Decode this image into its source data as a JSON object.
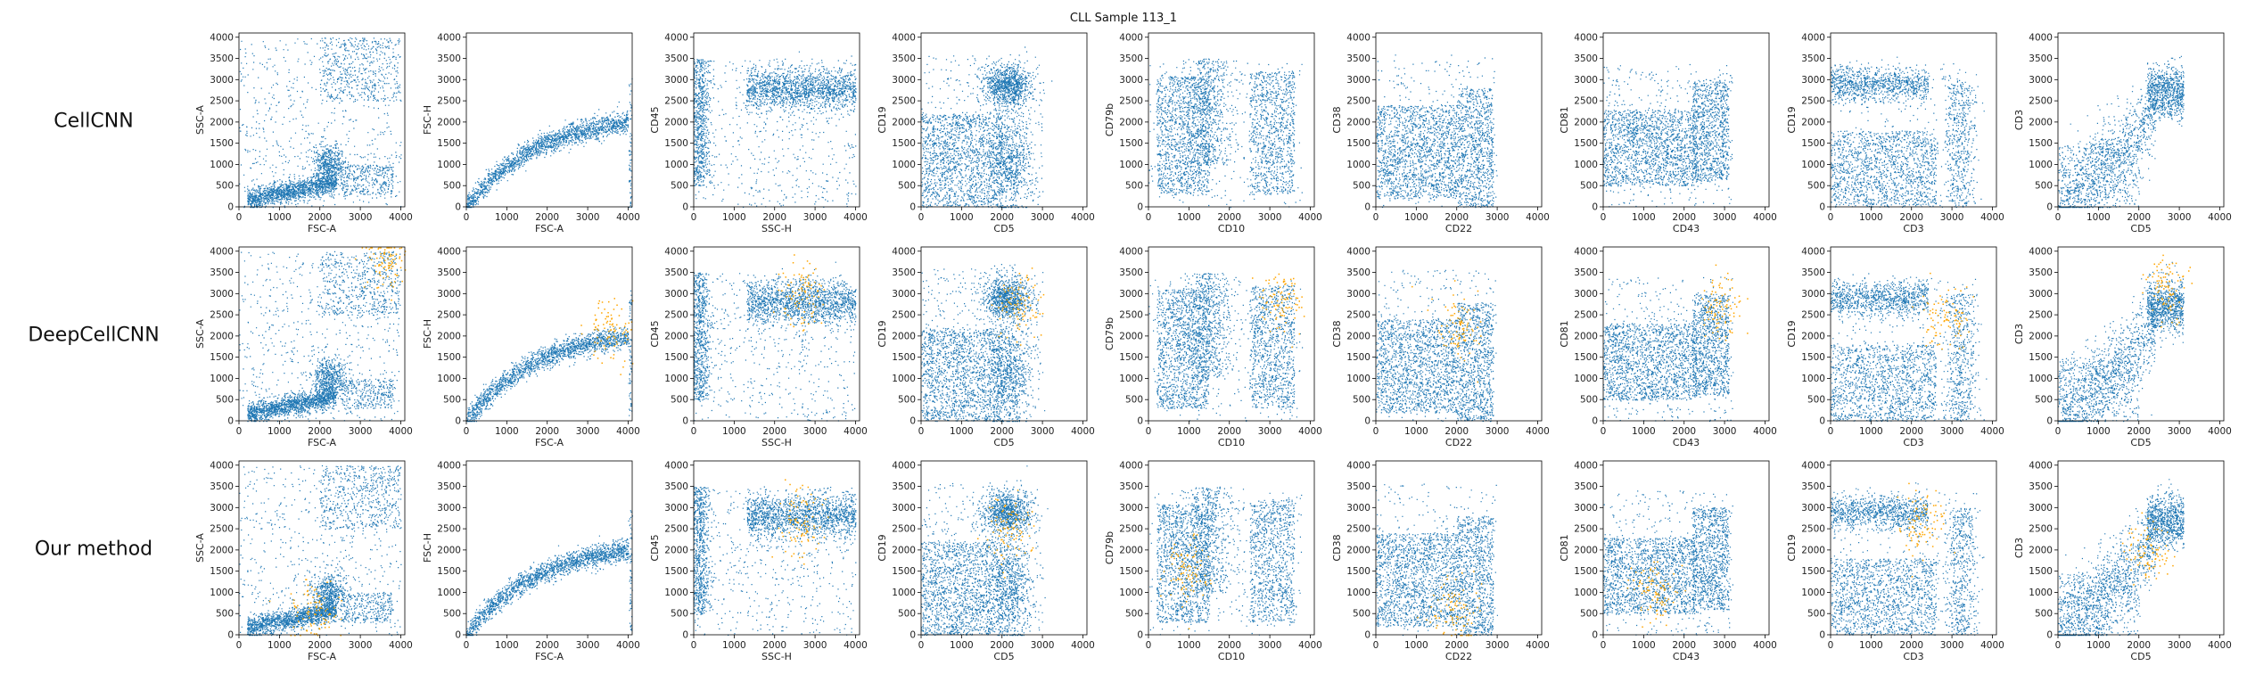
{
  "figure": {
    "title": "CLL Sample 113_1",
    "row_labels": [
      "CellCNN",
      "DeepCellCNN",
      "Our method"
    ]
  },
  "colors": {
    "cells": "#1f77b4",
    "selected": "#ffa500"
  },
  "chart_data": {
    "type": "scatter",
    "layout": "grid",
    "rows": 3,
    "cols": 10,
    "xlim": [
      0,
      4100
    ],
    "ylim": [
      0,
      4100
    ],
    "ticks": [
      0,
      500,
      1000,
      1500,
      2000,
      2500,
      3000,
      3500,
      4000
    ],
    "xticks": [
      0,
      1000,
      2000,
      3000,
      4000
    ],
    "panels": [
      {
        "id": "fsc-ssc",
        "xlabel": "FSC-A",
        "ylabel": "SSC-A"
      },
      {
        "id": "fsc-fsch",
        "xlabel": "FSC-A",
        "ylabel": "FSC-H"
      },
      {
        "id": "ssch-cd45",
        "xlabel": "SSC-H",
        "ylabel": "CD45"
      },
      {
        "id": "cd5-cd19",
        "xlabel": "CD5",
        "ylabel": "CD19"
      },
      {
        "id": "cd10-cd79b",
        "xlabel": "CD10",
        "ylabel": "CD79b"
      },
      {
        "id": "cd22-cd38",
        "xlabel": "CD22",
        "ylabel": "CD38"
      },
      {
        "id": "cd43-cd81",
        "xlabel": "CD43",
        "ylabel": "CD81"
      },
      {
        "id": "cd3-cd19",
        "xlabel": "CD3",
        "ylabel": "CD19"
      },
      {
        "id": "cd5-cd3",
        "xlabel": "CD5",
        "ylabel": "CD3"
      }
    ],
    "series": [
      {
        "color": "#1f77b4",
        "description_ref": "all cells"
      },
      {
        "color": "#ffa500",
        "description_ref": "selected cells"
      }
    ]
  }
}
